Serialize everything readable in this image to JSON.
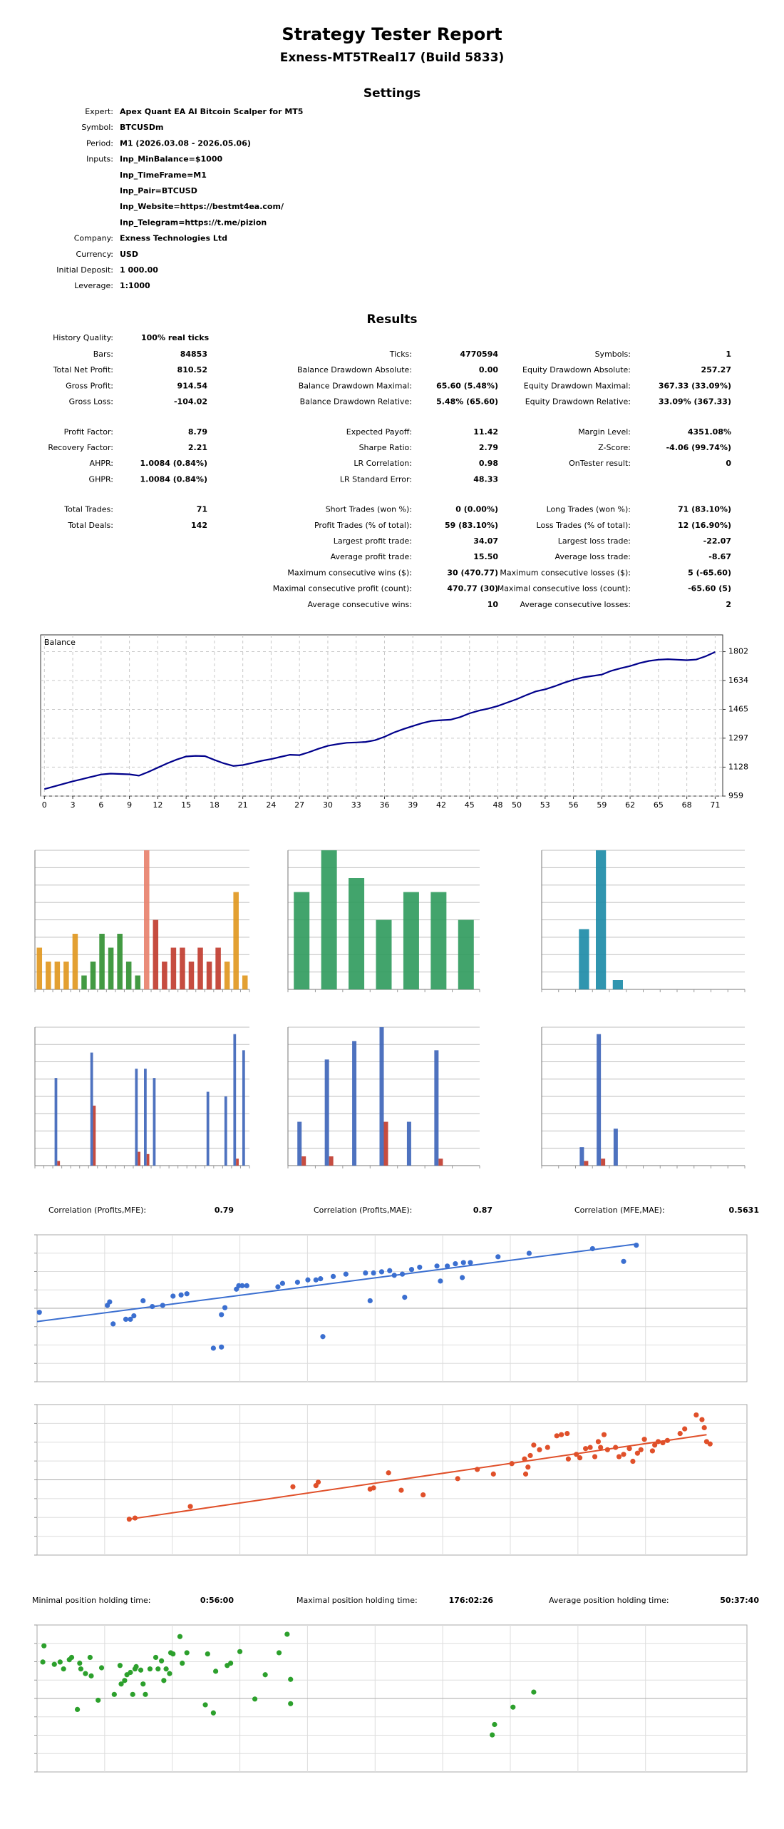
{
  "header": {
    "title": "Strategy Tester Report",
    "subtitle": "Exness-MT5TReal17 (Build 5833)"
  },
  "settings": {
    "title": "Settings",
    "rows": [
      {
        "label": "Expert:",
        "values": [
          "Apex Quant EA AI Bitcoin Scalper for MT5"
        ]
      },
      {
        "label": "Symbol:",
        "values": [
          "BTCUSDm"
        ]
      },
      {
        "label": "Period:",
        "values": [
          "M1 (2026.03.08 - 2026.05.06)"
        ]
      },
      {
        "label": "Inputs:",
        "values": [
          "Inp_MinBalance=$1000",
          "Inp_TimeFrame=M1",
          "Inp_Pair=BTCUSD",
          "Inp_Website=https://bestmt4ea.com/",
          "Inp_Telegram=https://t.me/pizion"
        ]
      },
      {
        "label": "Company:",
        "values": [
          "Exness Technologies Ltd"
        ]
      },
      {
        "label": "Currency:",
        "values": [
          "USD"
        ]
      },
      {
        "label": "Initial Deposit:",
        "values": [
          "1 000.00"
        ]
      },
      {
        "label": "Leverage:",
        "values": [
          "1:1000"
        ]
      }
    ]
  },
  "results": {
    "title": "Results",
    "history_quality": {
      "label": "History Quality:",
      "value": "100% real ticks"
    },
    "groups": [
      [
        [
          {
            "label": "Bars:",
            "value": "84853"
          },
          {
            "label": "Ticks:",
            "value": "4770594"
          },
          {
            "label": "Symbols:",
            "value": "1"
          }
        ],
        [
          {
            "label": "Total Net Profit:",
            "value": "810.52"
          },
          {
            "label": "Balance Drawdown Absolute:",
            "value": "0.00"
          },
          {
            "label": "Equity Drawdown Absolute:",
            "value": "257.27"
          }
        ],
        [
          {
            "label": "Gross Profit:",
            "value": "914.54"
          },
          {
            "label": "Balance Drawdown Maximal:",
            "value": "65.60 (5.48%)"
          },
          {
            "label": "Equity Drawdown Maximal:",
            "value": "367.33 (33.09%)"
          }
        ],
        [
          {
            "label": "Gross Loss:",
            "value": "-104.02"
          },
          {
            "label": "Balance Drawdown Relative:",
            "value": "5.48% (65.60)"
          },
          {
            "label": "Equity Drawdown Relative:",
            "value": "33.09% (367.33)"
          }
        ]
      ],
      [
        [
          {
            "label": "Profit Factor:",
            "value": "8.79"
          },
          {
            "label": "Expected Payoff:",
            "value": "11.42"
          },
          {
            "label": "Margin Level:",
            "value": "4351.08%"
          }
        ],
        [
          {
            "label": "Recovery Factor:",
            "value": "2.21"
          },
          {
            "label": "Sharpe Ratio:",
            "value": "2.79"
          },
          {
            "label": "Z-Score:",
            "value": "-4.06 (99.74%)"
          }
        ],
        [
          {
            "label": "AHPR:",
            "value": "1.0084 (0.84%)"
          },
          {
            "label": "LR Correlation:",
            "value": "0.98"
          },
          {
            "label": "OnTester result:",
            "value": "0"
          }
        ],
        [
          {
            "label": "GHPR:",
            "value": "1.0084 (0.84%)"
          },
          {
            "label": "LR Standard Error:",
            "value": "48.33"
          },
          null
        ]
      ],
      [
        [
          {
            "label": "Total Trades:",
            "value": "71"
          },
          {
            "label": "Short Trades (won %):",
            "value": "0 (0.00%)"
          },
          {
            "label": "Long Trades (won %):",
            "value": "71 (83.10%)"
          }
        ],
        [
          {
            "label": "Total Deals:",
            "value": "142"
          },
          {
            "label": "Profit Trades (% of total):",
            "value": "59 (83.10%)"
          },
          {
            "label": "Loss Trades (% of total):",
            "value": "12 (16.90%)"
          }
        ],
        [
          null,
          {
            "label": "Largest profit trade:",
            "value": "34.07"
          },
          {
            "label": "Largest loss trade:",
            "value": "-22.07"
          }
        ],
        [
          null,
          {
            "label": "Average profit trade:",
            "value": "15.50"
          },
          {
            "label": "Average loss trade:",
            "value": "-8.67"
          }
        ],
        [
          null,
          {
            "label": "Maximum consecutive wins ($):",
            "value": "30 (470.77)"
          },
          {
            "label": "Maximum consecutive losses ($):",
            "value": "5 (-65.60)"
          }
        ],
        [
          null,
          {
            "label": "Maximal consecutive profit (count):",
            "value": "470.77 (30)"
          },
          {
            "label": "Maximal consecutive loss (count):",
            "value": "-65.60 (5)"
          }
        ],
        [
          null,
          {
            "label": "Average consecutive wins:",
            "value": "10"
          },
          {
            "label": "Average consecutive losses:",
            "value": "2"
          }
        ]
      ]
    ]
  },
  "balance_chart": {
    "type": "line",
    "label": "Balance",
    "color": "#00008b",
    "x": [
      0,
      1,
      2,
      3,
      4,
      5,
      6,
      7,
      8,
      9,
      10,
      11,
      12,
      13,
      14,
      15,
      16,
      17,
      18,
      19,
      20,
      21,
      22,
      23,
      24,
      25,
      26,
      27,
      28,
      29,
      30,
      31,
      32,
      33,
      34,
      35,
      36,
      37,
      38,
      39,
      40,
      41,
      42,
      43,
      44,
      45,
      46,
      47,
      48,
      49,
      50,
      51,
      52,
      53,
      54,
      55,
      56,
      57,
      58,
      59,
      60,
      61,
      62,
      63,
      64,
      65,
      66,
      67,
      68,
      69,
      70,
      71
    ],
    "values": [
      1000,
      1015,
      1030,
      1045,
      1058,
      1072,
      1085,
      1090,
      1088,
      1086,
      1078,
      1100,
      1125,
      1150,
      1172,
      1190,
      1194,
      1192,
      1170,
      1150,
      1135,
      1140,
      1152,
      1165,
      1175,
      1188,
      1200,
      1198,
      1215,
      1235,
      1252,
      1262,
      1270,
      1272,
      1275,
      1285,
      1305,
      1330,
      1350,
      1368,
      1385,
      1398,
      1402,
      1405,
      1420,
      1442,
      1458,
      1470,
      1485,
      1505,
      1525,
      1548,
      1570,
      1582,
      1600,
      1620,
      1638,
      1652,
      1660,
      1668,
      1690,
      1705,
      1718,
      1735,
      1748,
      1755,
      1758,
      1755,
      1752,
      1756,
      1775,
      1800
    ],
    "xlim": [
      -0.4,
      71.8
    ],
    "ylim": [
      959,
      1900
    ],
    "xticks": [
      0,
      3,
      6,
      9,
      12,
      15,
      18,
      21,
      24,
      27,
      30,
      33,
      36,
      39,
      42,
      45,
      48,
      50,
      53,
      56,
      59,
      62,
      65,
      68,
      71
    ],
    "yticks": [
      959,
      1128,
      1297,
      1465,
      1634,
      1802
    ],
    "grid": true
  },
  "bar_charts": [
    {
      "type": "bar",
      "ylim": [
        0,
        120
      ],
      "series": [
        {
          "values": [
            36,
            24,
            24,
            24,
            48,
            12,
            24,
            48,
            36,
            48,
            24,
            12,
            120,
            60,
            24,
            36,
            36,
            24,
            36,
            24,
            36,
            24,
            84,
            12
          ],
          "colors": [
            "#e0961c",
            "#e0961c",
            "#e0961c",
            "#e0961c",
            "#e0961c",
            "#2f8f2f",
            "#2f8f2f",
            "#2f8f2f",
            "#2f8f2f",
            "#2f8f2f",
            "#2f8f2f",
            "#2f8f2f",
            "#e8806a",
            "#c0392b",
            "#c0392b",
            "#c0392b",
            "#c0392b",
            "#c0392b",
            "#c0392b",
            "#c0392b",
            "#c0392b",
            "#e0961c",
            "#e0961c",
            "#e0961c"
          ]
        }
      ]
    },
    {
      "type": "bar",
      "ylim": [
        0,
        120
      ],
      "series": [
        {
          "color": "#2e9a5c",
          "values": [
            84,
            120,
            96,
            60,
            84,
            84,
            60
          ]
        }
      ]
    },
    {
      "type": "bar",
      "ylim": [
        0,
        120
      ],
      "series": [
        {
          "color": "#1a8aa6",
          "values": [
            0,
            0,
            52,
            120,
            8,
            0,
            0,
            0,
            0,
            0,
            0,
            0
          ]
        }
      ]
    },
    {
      "type": "bar",
      "ylim": [
        0,
        120
      ],
      "series": [
        {
          "color": "#3b63b8",
          "values": [
            0,
            0,
            76,
            0,
            0,
            0,
            98,
            0,
            0,
            0,
            0,
            84,
            84,
            76,
            0,
            0,
            0,
            0,
            0,
            64,
            0,
            60,
            114,
            100
          ]
        },
        {
          "color": "#c0392b",
          "values": [
            0,
            0,
            4,
            0,
            0,
            0,
            52,
            0,
            0,
            0,
            0,
            12,
            10,
            0,
            0,
            0,
            0,
            0,
            0,
            0,
            0,
            0,
            6,
            0
          ]
        }
      ]
    },
    {
      "type": "bar",
      "ylim": [
        0,
        120
      ],
      "series": [
        {
          "color": "#3b63b8",
          "values": [
            38,
            92,
            108,
            120,
            38,
            100,
            0
          ]
        },
        {
          "color": "#c0392b",
          "values": [
            8,
            8,
            0,
            38,
            0,
            6,
            0
          ]
        }
      ]
    },
    {
      "type": "bar",
      "ylim": [
        0,
        120
      ],
      "series": [
        {
          "color": "#3b63b8",
          "values": [
            0,
            0,
            16,
            114,
            32,
            0,
            0,
            0,
            0,
            0,
            0,
            0
          ]
        },
        {
          "color": "#c0392b",
          "values": [
            0,
            0,
            4,
            6,
            0,
            0,
            0,
            0,
            0,
            0,
            0,
            0
          ]
        }
      ]
    }
  ],
  "correlations": [
    {
      "label": "Correlation (Profits,MFE):",
      "value": "0.79"
    },
    {
      "label": "Correlation (Profits,MAE):",
      "value": "0.87"
    },
    {
      "label": "Correlation (MFE,MAE):",
      "value": "0.5631"
    }
  ],
  "scatters": [
    {
      "type": "scatter",
      "color": "#3b6fd0",
      "xlim": [
        0,
        616
      ],
      "ylim": [
        0,
        127
      ],
      "x": [
        2,
        61,
        63,
        66,
        77,
        81,
        84,
        92,
        100,
        109,
        118,
        125,
        130,
        153,
        160,
        160,
        163,
        173,
        175,
        178,
        182,
        209,
        213,
        226,
        235,
        242,
        246,
        248,
        257,
        268,
        285,
        289,
        292,
        299,
        306,
        310,
        317,
        319,
        325,
        332,
        347,
        350,
        356,
        363,
        369,
        370,
        376,
        400,
        427,
        482,
        509,
        520
      ],
      "y": [
        60,
        66,
        69,
        50,
        54,
        54,
        57,
        70,
        65,
        66,
        74,
        75,
        76,
        29,
        30,
        58,
        64,
        80,
        83,
        83,
        83,
        82,
        85,
        86,
        88,
        88,
        89,
        39,
        91,
        93,
        94,
        70,
        94,
        95,
        96,
        92,
        93,
        73,
        97,
        99,
        100,
        87,
        100,
        102,
        90,
        103,
        103,
        108,
        111,
        115,
        104,
        118
      ],
      "trend": {
        "x": [
          0,
          520
        ],
        "y": [
          52,
          119
        ]
      }
    },
    {
      "type": "scatter",
      "color": "#e0502a",
      "xlim": [
        0,
        616
      ],
      "ylim": [
        0,
        130
      ],
      "x": [
        80,
        85,
        133,
        222,
        242,
        244,
        289,
        292,
        305,
        316,
        335,
        365,
        382,
        396,
        412,
        423,
        424,
        426,
        428,
        431,
        436,
        443,
        451,
        455,
        460,
        461,
        468,
        471,
        476,
        480,
        484,
        487,
        489,
        492,
        495,
        502,
        505,
        509,
        514,
        517,
        521,
        524,
        527,
        534,
        536,
        539,
        543,
        547,
        558,
        562,
        572,
        577,
        579,
        581,
        584
      ],
      "y": [
        31,
        32,
        42,
        59,
        60,
        63,
        57,
        58,
        71,
        56,
        52,
        66,
        74,
        70,
        79,
        83,
        70,
        76,
        86,
        95,
        91,
        93,
        103,
        104,
        105,
        83,
        87,
        84,
        92,
        93,
        85,
        98,
        93,
        104,
        91,
        93,
        85,
        87,
        92,
        81,
        88,
        91,
        100,
        90,
        95,
        98,
        97,
        99,
        105,
        109,
        121,
        117,
        110,
        98,
        96
      ],
      "trend": {
        "x": [
          80,
          581
        ],
        "y": [
          31,
          104
        ]
      }
    }
  ],
  "holding_times": [
    {
      "label": "Minimal position holding time:",
      "value": "0:56:00"
    },
    {
      "label": "Maximal position holding time:",
      "value": "176:02:26"
    },
    {
      "label": "Average position holding time:",
      "value": "50:37:40"
    }
  ],
  "holding_scatter": {
    "type": "scatter",
    "color": "#2ca02c",
    "xlim": [
      0,
      616
    ],
    "ylim": [
      0,
      127
    ],
    "x": [
      6,
      5,
      15,
      20,
      23,
      28,
      30,
      35,
      37,
      38,
      42,
      46,
      47,
      53,
      56,
      67,
      72,
      73,
      76,
      78,
      81,
      83,
      85,
      86,
      90,
      92,
      94,
      98,
      103,
      105,
      108,
      110,
      112,
      115,
      116,
      118,
      124,
      126,
      130,
      146,
      148,
      153,
      155,
      165,
      168,
      176,
      189,
      198,
      210,
      217,
      220,
      220,
      395,
      397,
      413,
      431
    ],
    "y": [
      109,
      95,
      93,
      95,
      89,
      97,
      99,
      54,
      94,
      89,
      85,
      99,
      83,
      62,
      90,
      67,
      92,
      76,
      79,
      84,
      86,
      67,
      89,
      91,
      88,
      76,
      67,
      89,
      99,
      89,
      96,
      79,
      89,
      85,
      103,
      102,
      117,
      94,
      103,
      58,
      102,
      51,
      87,
      92,
      94,
      104,
      63,
      84,
      103,
      119,
      80,
      59,
      32,
      41,
      56,
      69
    ]
  }
}
